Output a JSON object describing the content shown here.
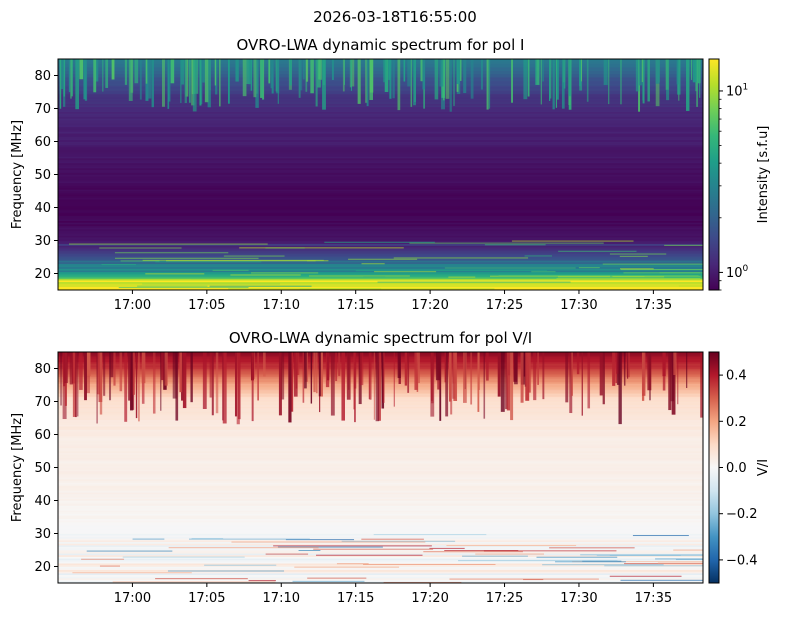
{
  "suptitle": "2026-03-18T16:55:00",
  "chart_data": [
    {
      "type": "heatmap",
      "title": "OVRO-LWA dynamic spectrum for pol I",
      "xlabel": "",
      "ylabel": "Frequency [MHz]",
      "x_ticks": [
        "17:00",
        "17:05",
        "17:10",
        "17:15",
        "17:20",
        "17:25",
        "17:30",
        "17:35"
      ],
      "x_range": [
        "16:55:00",
        "17:38:20"
      ],
      "y_ticks": [
        20,
        30,
        40,
        50,
        60,
        70,
        80
      ],
      "ylim": [
        15,
        85
      ],
      "colorbar": {
        "label": "Intensity [s.f.u]",
        "scale": "log",
        "range": [
          0.8,
          15
        ],
        "ticks": [
          {
            "value": 1,
            "label": "10",
            "exp": "0"
          },
          {
            "value": 10,
            "label": "10",
            "exp": "1"
          }
        ],
        "colormap": "viridis",
        "colors": [
          "#440154",
          "#482878",
          "#3e4989",
          "#31688e",
          "#26828e",
          "#1f9e89",
          "#35b779",
          "#6ece58",
          "#b5de2b",
          "#fde725"
        ]
      },
      "frequency_profile": [
        {
          "freq": 15,
          "value": 15
        },
        {
          "freq": 16,
          "value": 15
        },
        {
          "freq": 17,
          "value": 7
        },
        {
          "freq": 18,
          "value": 12
        },
        {
          "freq": 19,
          "value": 4
        },
        {
          "freq": 20,
          "value": 3
        },
        {
          "freq": 22,
          "value": 2.4
        },
        {
          "freq": 24,
          "value": 1.8
        },
        {
          "freq": 26,
          "value": 1.4
        },
        {
          "freq": 28,
          "value": 1.1
        },
        {
          "freq": 30,
          "value": 0.95
        },
        {
          "freq": 35,
          "value": 0.85
        },
        {
          "freq": 40,
          "value": 0.8
        },
        {
          "freq": 45,
          "value": 0.85
        },
        {
          "freq": 50,
          "value": 0.9
        },
        {
          "freq": 55,
          "value": 0.95
        },
        {
          "freq": 60,
          "value": 1.0
        },
        {
          "freq": 65,
          "value": 1.05
        },
        {
          "freq": 70,
          "value": 1.15
        },
        {
          "freq": 75,
          "value": 1.35
        },
        {
          "freq": 80,
          "value": 1.8
        },
        {
          "freq": 85,
          "value": 2.8
        }
      ]
    },
    {
      "type": "heatmap",
      "title": "OVRO-LWA dynamic spectrum for pol V/I",
      "xlabel": "",
      "ylabel": "Frequency [MHz]",
      "x_ticks": [
        "17:00",
        "17:05",
        "17:10",
        "17:15",
        "17:20",
        "17:25",
        "17:30",
        "17:35"
      ],
      "x_range": [
        "16:55:00",
        "17:38:20"
      ],
      "y_ticks": [
        20,
        30,
        40,
        50,
        60,
        70,
        80
      ],
      "ylim": [
        15,
        85
      ],
      "colorbar": {
        "label": "V/I",
        "scale": "linear",
        "range": [
          -0.5,
          0.5
        ],
        "ticks": [
          {
            "value": 0.4,
            "label": "0.4"
          },
          {
            "value": 0.2,
            "label": "0.2"
          },
          {
            "value": 0.0,
            "label": "0.0"
          },
          {
            "value": -0.2,
            "label": "−0.2"
          },
          {
            "value": -0.4,
            "label": "−0.4"
          }
        ],
        "colormap": "RdBu_r",
        "colors": [
          "#053061",
          "#2166ac",
          "#4393c3",
          "#92c5de",
          "#d1e5f0",
          "#f7f7f7",
          "#fddbc7",
          "#f4a582",
          "#d6604d",
          "#b2182b",
          "#67001f"
        ]
      },
      "frequency_profile": [
        {
          "freq": 15,
          "value": 0.05
        },
        {
          "freq": 30,
          "value": 0.0
        },
        {
          "freq": 40,
          "value": 0.02
        },
        {
          "freq": 60,
          "value": 0.04
        },
        {
          "freq": 70,
          "value": 0.08
        },
        {
          "freq": 75,
          "value": 0.18
        },
        {
          "freq": 80,
          "value": 0.35
        },
        {
          "freq": 85,
          "value": 0.45
        }
      ]
    }
  ]
}
